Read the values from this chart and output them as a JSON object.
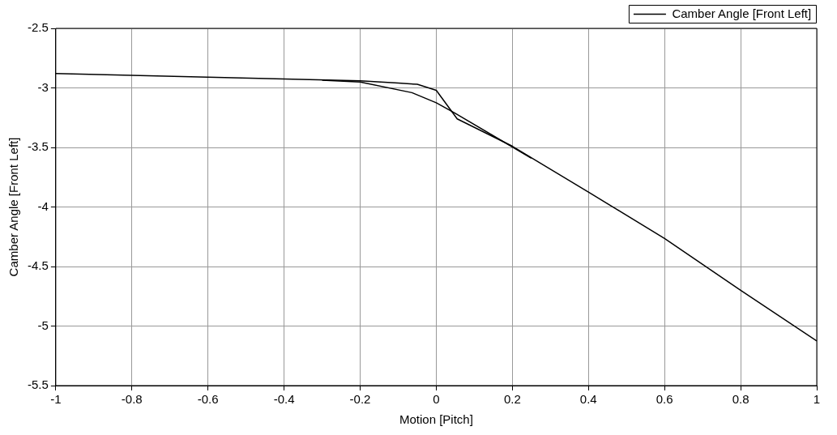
{
  "chart_data": {
    "type": "line",
    "xlabel": "Motion [Pitch]",
    "ylabel": "Camber Angle [Front Left]",
    "series": [
      {
        "name": "Camber Angle [Front Left]",
        "color": "#000000",
        "x": [
          -1,
          -0.6,
          -0.2,
          -0.1,
          -0.05,
          0,
          0.055,
          0.2,
          0.4,
          0.6,
          0.8,
          1
        ],
        "values": [
          -2.88,
          -2.91,
          -2.94,
          -2.96,
          -2.97,
          -3.02,
          -3.26,
          -3.49,
          -3.875,
          -4.265,
          -4.7,
          -5.125
        ]
      },
      {
        "color": "#000000",
        "x": [
          -0.3,
          -0.2,
          -0.064,
          0,
          0.048,
          0.25
        ],
        "values": [
          -2.935,
          -2.95,
          -3.04,
          -3.125,
          -3.21,
          -3.59
        ]
      }
    ],
    "xlim": [
      -1,
      1
    ],
    "xticks": [
      -1,
      -0.8,
      -0.6,
      -0.4,
      -0.2,
      0,
      0.2,
      0.4,
      0.6,
      0.8,
      1
    ],
    "ylim": [
      -5.5,
      -2.5
    ],
    "yticks": [
      -5.5,
      -5,
      -4.5,
      -4,
      -3.5,
      -3,
      -2.5
    ],
    "grid": true,
    "legend": "top right",
    "marker": "none",
    "line_style": "solid"
  }
}
